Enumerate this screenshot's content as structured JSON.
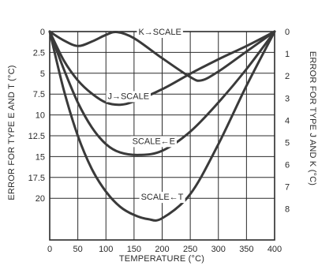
{
  "chart_data": {
    "type": "line",
    "xlabel": "TEMPERATURE (°C)",
    "ylabel_left": "ERROR FOR TYPE E AND T (°C)",
    "ylabel_right": "ERROR FOR TYPE J AND K (°C)",
    "xlim": [
      0,
      400
    ],
    "ylim_left": [
      0,
      25
    ],
    "ylim_right": [
      0,
      9.4
    ],
    "y_inverted": true,
    "grid": true,
    "x_ticks": [
      "0",
      "50",
      "100",
      "150",
      "200",
      "250",
      "300",
      "350",
      "400"
    ],
    "x_tick_values": [
      0,
      50,
      100,
      150,
      200,
      250,
      300,
      350,
      400
    ],
    "left_ticks": [
      "0",
      "2.5",
      "5",
      "7.5",
      "10",
      "12.5",
      "15",
      "17.5",
      "20"
    ],
    "left_tick_values": [
      0,
      2.5,
      5,
      7.5,
      10,
      12.5,
      15,
      17.5,
      20
    ],
    "right_ticks": [
      "0",
      "1",
      "2",
      "3",
      "4",
      "5",
      "6",
      "7",
      "8"
    ],
    "right_tick_values": [
      0,
      1,
      2,
      3,
      4,
      5,
      6,
      7,
      8
    ],
    "series": [
      {
        "name": "K→SCALE",
        "axis": "right",
        "points": [
          [
            0,
            0
          ],
          [
            25,
            0.4
          ],
          [
            50,
            0.65
          ],
          [
            75,
            0.45
          ],
          [
            100,
            0.15
          ],
          [
            120,
            0.02
          ],
          [
            150,
            0.3
          ],
          [
            200,
            1.2
          ],
          [
            250,
            2.05
          ],
          [
            270,
            2.2
          ],
          [
            300,
            1.8
          ],
          [
            350,
            0.9
          ],
          [
            400,
            0
          ]
        ],
        "label": {
          "x": 196,
          "y": 0,
          "axis": "right"
        }
      },
      {
        "name": "J→SCALE",
        "axis": "right",
        "points": [
          [
            0,
            0
          ],
          [
            25,
            1.3
          ],
          [
            50,
            2.2
          ],
          [
            75,
            2.8
          ],
          [
            100,
            3.2
          ],
          [
            125,
            3.3
          ],
          [
            150,
            3.15
          ],
          [
            200,
            2.6
          ],
          [
            250,
            1.9
          ],
          [
            300,
            1.25
          ],
          [
            350,
            0.65
          ],
          [
            400,
            0
          ]
        ],
        "label": {
          "x": 140,
          "y": 2.9,
          "axis": "right"
        }
      },
      {
        "name": "SCALE←E",
        "axis": "left",
        "points": [
          [
            0,
            0
          ],
          [
            25,
            4.5
          ],
          [
            50,
            8.5
          ],
          [
            75,
            11.5
          ],
          [
            100,
            13.5
          ],
          [
            125,
            14.5
          ],
          [
            160,
            14.8
          ],
          [
            200,
            14.3
          ],
          [
            250,
            12
          ],
          [
            300,
            8.5
          ],
          [
            350,
            4.5
          ],
          [
            400,
            0
          ]
        ],
        "label": {
          "x": 185,
          "y": 13.1,
          "axis": "left"
        }
      },
      {
        "name": "SCALE←T",
        "axis": "left",
        "points": [
          [
            0,
            0
          ],
          [
            25,
            7
          ],
          [
            50,
            12.5
          ],
          [
            75,
            16.5
          ],
          [
            100,
            19.2
          ],
          [
            125,
            21
          ],
          [
            150,
            22
          ],
          [
            175,
            22.5
          ],
          [
            200,
            22.4
          ],
          [
            250,
            19.5
          ],
          [
            300,
            13.5
          ],
          [
            350,
            6.5
          ],
          [
            400,
            0
          ]
        ],
        "label": {
          "x": 200,
          "y": 19.8,
          "axis": "left"
        }
      }
    ]
  }
}
